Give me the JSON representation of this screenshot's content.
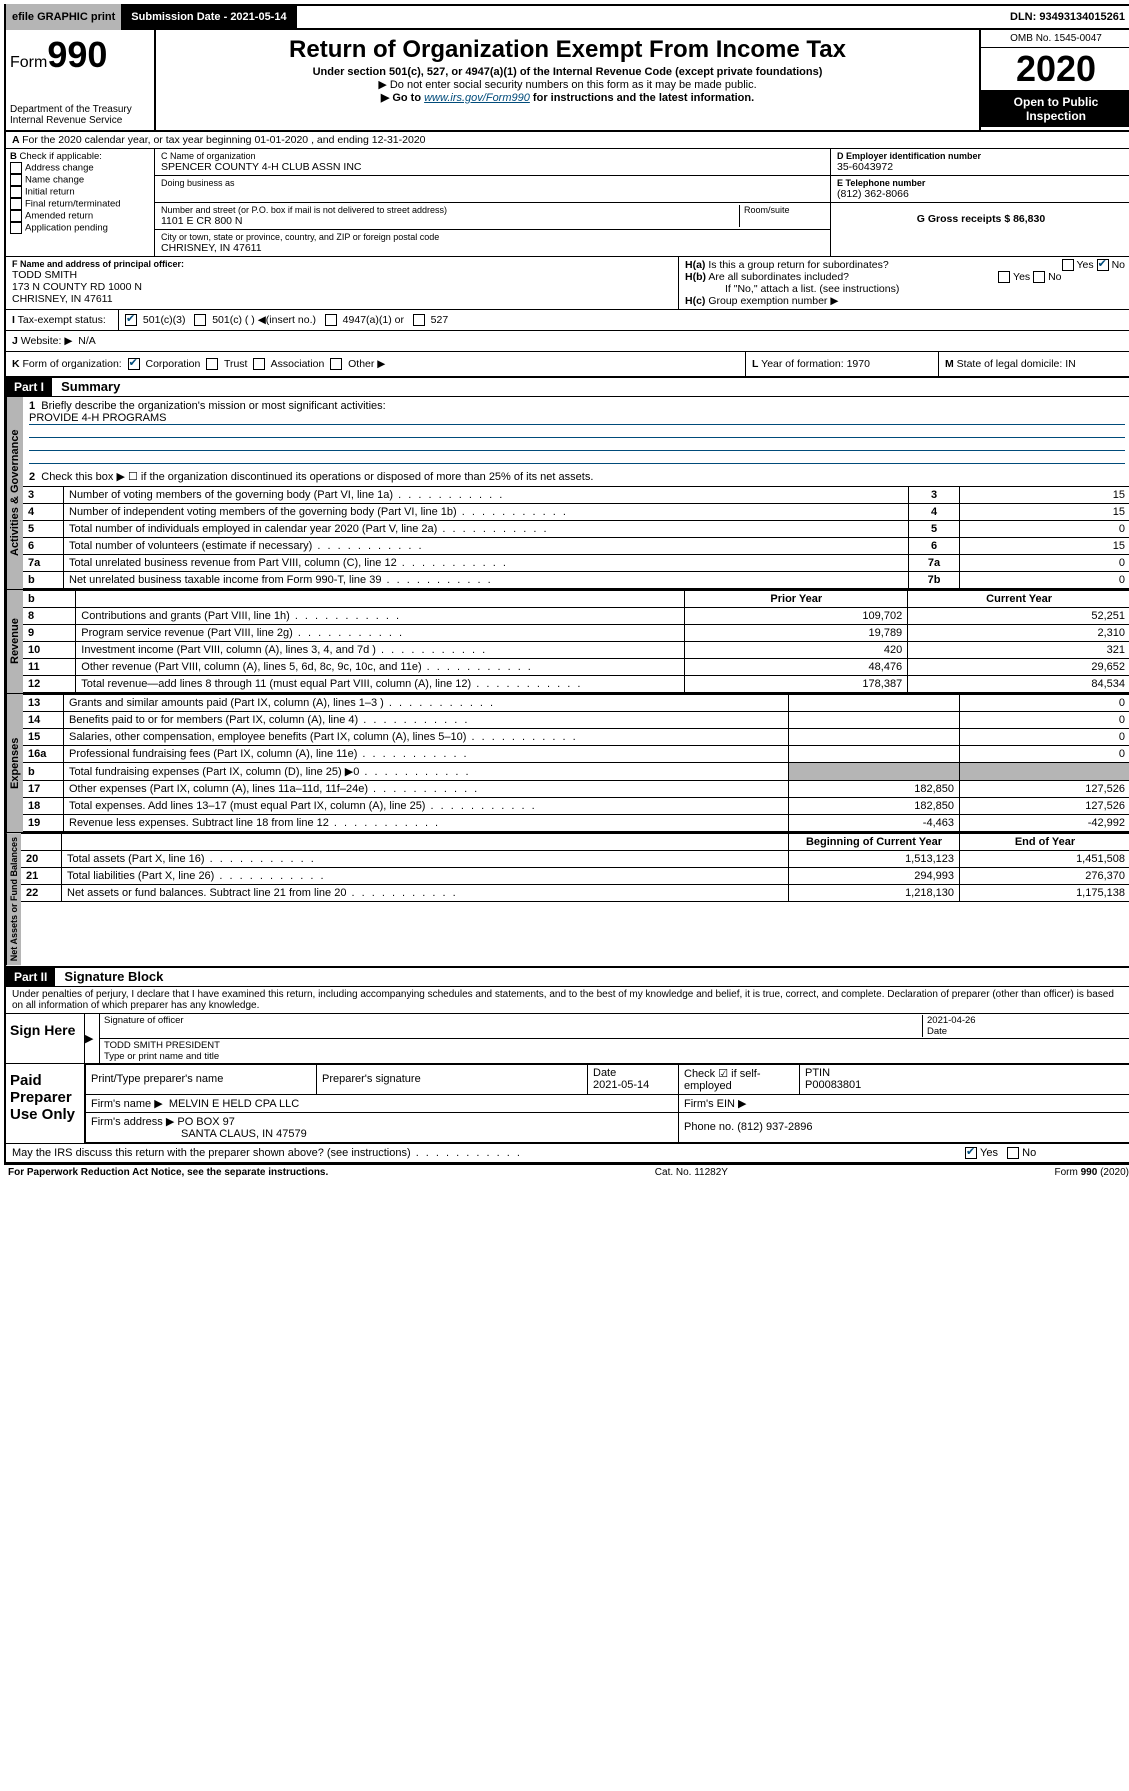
{
  "topbar": {
    "efile": "efile GRAPHIC print",
    "subdate_label": "Submission Date - 2021-05-14",
    "dln": "DLN: 93493134015261"
  },
  "header": {
    "form_prefix": "Form",
    "form_num": "990",
    "dept": "Department of the Treasury",
    "irs": "Internal Revenue Service",
    "title": "Return of Organization Exempt From Income Tax",
    "sub1": "Under section 501(c), 527, or 4947(a)(1) of the Internal Revenue Code (except private foundations)",
    "sub2": "▶ Do not enter social security numbers on this form as it may be made public.",
    "sub3_pre": "▶ Go to ",
    "sub3_link": "www.irs.gov/Form990",
    "sub3_post": " for instructions and the latest information.",
    "omb": "OMB No. 1545-0047",
    "year": "2020",
    "inspection": "Open to Public Inspection"
  },
  "A": {
    "line": "For the 2020 calendar year, or tax year beginning 01-01-2020   , and ending 12-31-2020"
  },
  "B": {
    "title": "Check if applicable:",
    "opts": [
      "Address change",
      "Name change",
      "Initial return",
      "Final return/terminated",
      "Amended return",
      "Application pending"
    ]
  },
  "C": {
    "name_label": "C Name of organization",
    "name": "SPENCER COUNTY 4-H CLUB ASSN INC",
    "dba_label": "Doing business as",
    "addr_label": "Number and street (or P.O. box if mail is not delivered to street address)",
    "room_label": "Room/suite",
    "addr": "1101 E CR 800 N",
    "city_label": "City or town, state or province, country, and ZIP or foreign postal code",
    "city": "CHRISNEY, IN  47611"
  },
  "D": {
    "label": "D Employer identification number",
    "val": "35-6043972"
  },
  "E": {
    "label": "E Telephone number",
    "val": "(812) 362-8066"
  },
  "G": {
    "label": "G Gross receipts $ 86,830"
  },
  "F": {
    "label": "F  Name and address of principal officer:",
    "name": "TODD SMITH",
    "addr1": "173 N COUNTY RD 1000 N",
    "addr2": "CHRISNEY, IN  47611"
  },
  "H": {
    "a": "Is this a group return for subordinates?",
    "b": "Are all subordinates included?",
    "b_note": "If \"No,\" attach a list. (see instructions)",
    "c": "Group exemption number ▶"
  },
  "I": {
    "label": "Tax-exempt status:",
    "opts": [
      "501(c)(3)",
      "501(c) (  ) ◀(insert no.)",
      "4947(a)(1) or",
      "527"
    ]
  },
  "J": {
    "label": "Website: ▶",
    "val": "N/A"
  },
  "K": {
    "label": "Form of organization:",
    "opts": [
      "Corporation",
      "Trust",
      "Association",
      "Other ▶"
    ]
  },
  "L": {
    "label": "Year of formation: 1970"
  },
  "M": {
    "label": "State of legal domicile: IN"
  },
  "part1": {
    "hdr": "Part I",
    "title": "Summary",
    "l1": "Briefly describe the organization's mission or most significant activities:",
    "l1v": "PROVIDE 4-H PROGRAMS",
    "l2": "Check this box ▶ ☐  if the organization discontinued its operations or disposed of more than 25% of its net assets.",
    "rows_gov": [
      {
        "n": "3",
        "t": "Number of voting members of the governing body (Part VI, line 1a)",
        "box": "3",
        "v": "15"
      },
      {
        "n": "4",
        "t": "Number of independent voting members of the governing body (Part VI, line 1b)",
        "box": "4",
        "v": "15"
      },
      {
        "n": "5",
        "t": "Total number of individuals employed in calendar year 2020 (Part V, line 2a)",
        "box": "5",
        "v": "0"
      },
      {
        "n": "6",
        "t": "Total number of volunteers (estimate if necessary)",
        "box": "6",
        "v": "15"
      },
      {
        "n": "7a",
        "t": "Total unrelated business revenue from Part VIII, column (C), line 12",
        "box": "7a",
        "v": "0"
      },
      {
        "n": "b",
        "t": "Net unrelated business taxable income from Form 990-T, line 39",
        "box": "7b",
        "v": "0"
      }
    ],
    "col_prior": "Prior Year",
    "col_curr": "Current Year",
    "rev": [
      {
        "n": "8",
        "t": "Contributions and grants (Part VIII, line 1h)",
        "p": "109,702",
        "c": "52,251"
      },
      {
        "n": "9",
        "t": "Program service revenue (Part VIII, line 2g)",
        "p": "19,789",
        "c": "2,310"
      },
      {
        "n": "10",
        "t": "Investment income (Part VIII, column (A), lines 3, 4, and 7d )",
        "p": "420",
        "c": "321"
      },
      {
        "n": "11",
        "t": "Other revenue (Part VIII, column (A), lines 5, 6d, 8c, 9c, 10c, and 11e)",
        "p": "48,476",
        "c": "29,652"
      },
      {
        "n": "12",
        "t": "Total revenue—add lines 8 through 11 (must equal Part VIII, column (A), line 12)",
        "p": "178,387",
        "c": "84,534"
      }
    ],
    "exp": [
      {
        "n": "13",
        "t": "Grants and similar amounts paid (Part IX, column (A), lines 1–3 )",
        "p": "",
        "c": "0"
      },
      {
        "n": "14",
        "t": "Benefits paid to or for members (Part IX, column (A), line 4)",
        "p": "",
        "c": "0"
      },
      {
        "n": "15",
        "t": "Salaries, other compensation, employee benefits (Part IX, column (A), lines 5–10)",
        "p": "",
        "c": "0"
      },
      {
        "n": "16a",
        "t": "Professional fundraising fees (Part IX, column (A), line 11e)",
        "p": "",
        "c": "0"
      },
      {
        "n": "b",
        "t": "Total fundraising expenses (Part IX, column (D), line 25) ▶0",
        "p": "",
        "c": ""
      },
      {
        "n": "17",
        "t": "Other expenses (Part IX, column (A), lines 11a–11d, 11f–24e)",
        "p": "182,850",
        "c": "127,526"
      },
      {
        "n": "18",
        "t": "Total expenses. Add lines 13–17 (must equal Part IX, column (A), line 25)",
        "p": "182,850",
        "c": "127,526"
      },
      {
        "n": "19",
        "t": "Revenue less expenses. Subtract line 18 from line 12",
        "p": "-4,463",
        "c": "-42,992"
      }
    ],
    "col_beg": "Beginning of Current Year",
    "col_end": "End of Year",
    "net": [
      {
        "n": "20",
        "t": "Total assets (Part X, line 16)",
        "p": "1,513,123",
        "c": "1,451,508"
      },
      {
        "n": "21",
        "t": "Total liabilities (Part X, line 26)",
        "p": "294,993",
        "c": "276,370"
      },
      {
        "n": "22",
        "t": "Net assets or fund balances. Subtract line 21 from line 20",
        "p": "1,218,130",
        "c": "1,175,138"
      }
    ]
  },
  "part2": {
    "hdr": "Part II",
    "title": "Signature Block",
    "decl": "Under penalties of perjury, I declare that I have examined this return, including accompanying schedules and statements, and to the best of my knowledge and belief, it is true, correct, and complete. Declaration of preparer (other than officer) is based on all information of which preparer has any knowledge.",
    "sign_here": "Sign Here",
    "sig_officer": "Signature of officer",
    "sig_date": "2021-04-26",
    "date_label": "Date",
    "officer_name": "TODD SMITH PRESIDENT",
    "type_name": "Type or print name and title",
    "paid": "Paid Preparer Use Only",
    "prep_name_label": "Print/Type preparer's name",
    "prep_sig_label": "Preparer's signature",
    "prep_date_label": "Date",
    "prep_date": "2021-05-14",
    "check_self": "Check ☑ if self-employed",
    "ptin_label": "PTIN",
    "ptin": "P00083801",
    "firm_name_label": "Firm's name    ▶",
    "firm_name": "MELVIN E HELD CPA LLC",
    "firm_ein_label": "Firm's EIN ▶",
    "firm_addr_label": "Firm's address ▶",
    "firm_addr1": "PO BOX 97",
    "firm_addr2": "SANTA CLAUS, IN  47579",
    "firm_phone_label": "Phone no. (812) 937-2896",
    "discuss": "May the IRS discuss this return with the preparer shown above? (see instructions)",
    "yes": "Yes",
    "no": "No"
  },
  "footer": {
    "pra": "For Paperwork Reduction Act Notice, see the separate instructions.",
    "cat": "Cat. No. 11282Y",
    "form": "Form 990 (2020)"
  },
  "tabs": {
    "gov": "Activities & Governance",
    "rev": "Revenue",
    "exp": "Expenses",
    "net": "Net Assets or Fund Balances"
  }
}
